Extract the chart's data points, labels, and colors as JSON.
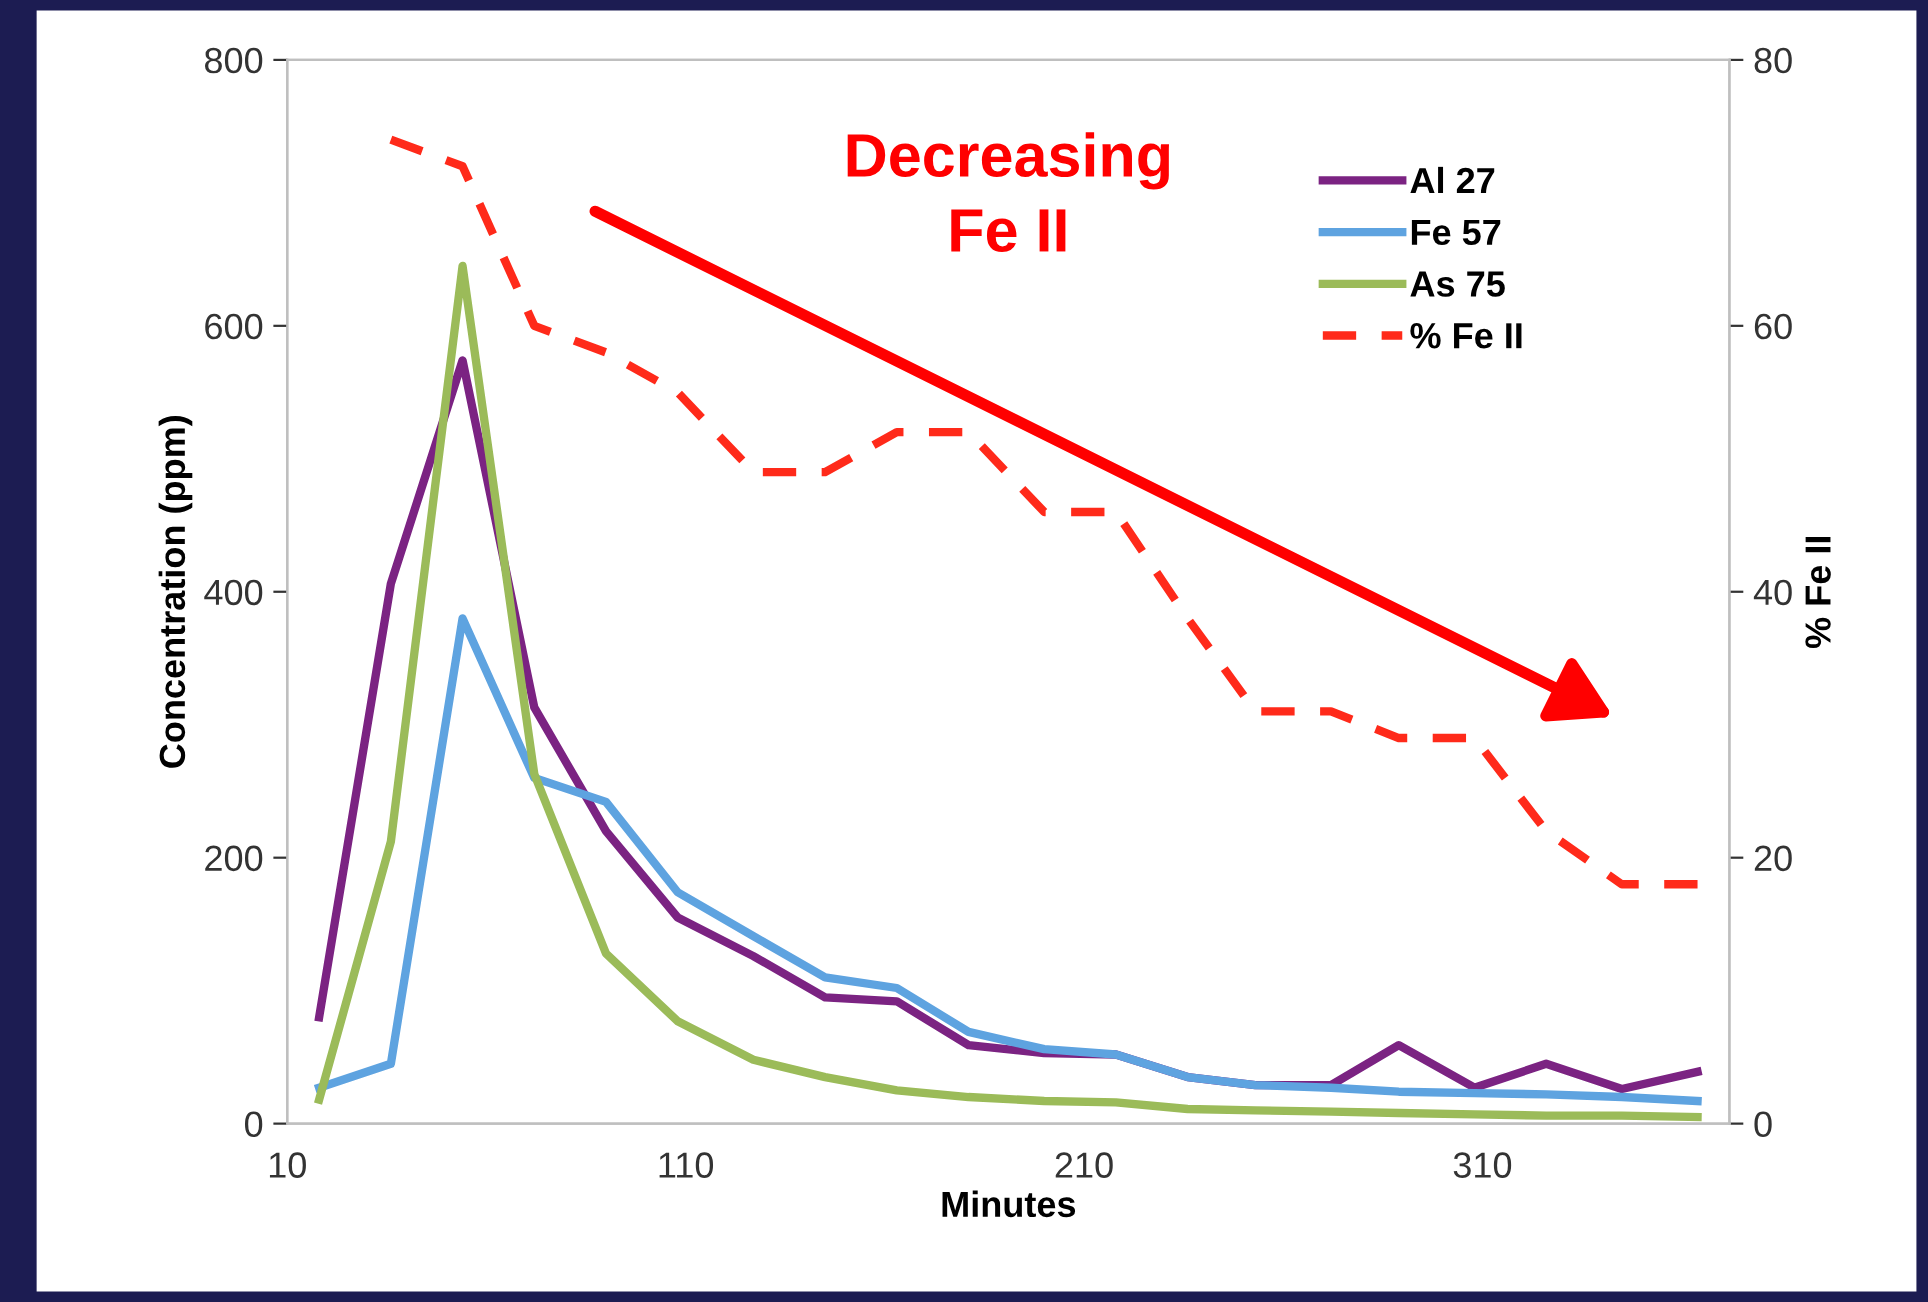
{
  "chart_data": {
    "type": "line",
    "xlabel": "Minutes",
    "ylabel": "Concentration (ppm)",
    "y2label": "% Fe II",
    "x": [
      18,
      36,
      54,
      72,
      90,
      108,
      127,
      145,
      163,
      181,
      200,
      218,
      236,
      253,
      272,
      289,
      308,
      326,
      345,
      364
    ],
    "series": [
      {
        "name": "Al 27",
        "color": "#7b2382",
        "values": [
          80,
          406,
          574,
          313,
          220,
          155,
          126,
          95,
          92,
          59,
          53,
          52,
          35,
          29,
          29,
          59,
          27,
          45,
          26,
          39
        ]
      },
      {
        "name": "Fe 57",
        "color": "#5ea3e0",
        "values": [
          27,
          45,
          380,
          260,
          242,
          174,
          141,
          110,
          102,
          69,
          56,
          52,
          35,
          29,
          27,
          24,
          23,
          22,
          20,
          17
        ]
      },
      {
        "name": "As 75",
        "color": "#9bbb59",
        "values": [
          18,
          212,
          645,
          263,
          128,
          77,
          48,
          35,
          25,
          20,
          17,
          16,
          11,
          10,
          9,
          8,
          7,
          6,
          6,
          5
        ]
      },
      {
        "name": "% Fe II",
        "color": "#ff2a1a",
        "axis": "y2",
        "line_style": "dashed",
        "values": [
          null,
          74,
          72,
          60,
          58,
          55,
          49,
          49,
          52,
          52,
          46,
          46,
          38,
          31,
          31,
          29,
          29,
          22,
          18,
          18
        ]
      }
    ],
    "annotations": [
      "Decreasing\nFe II"
    ],
    "xlim": [
      10,
      372
    ],
    "xticks": [
      10,
      110,
      210,
      310
    ],
    "ylim": [
      0,
      800
    ],
    "yticks": [
      0,
      200,
      400,
      600,
      800
    ],
    "y2lim": [
      0,
      80
    ],
    "y2ticks": [
      0,
      20,
      40,
      60,
      80
    ],
    "legend": "top right",
    "grid": false,
    "marker": "none"
  }
}
